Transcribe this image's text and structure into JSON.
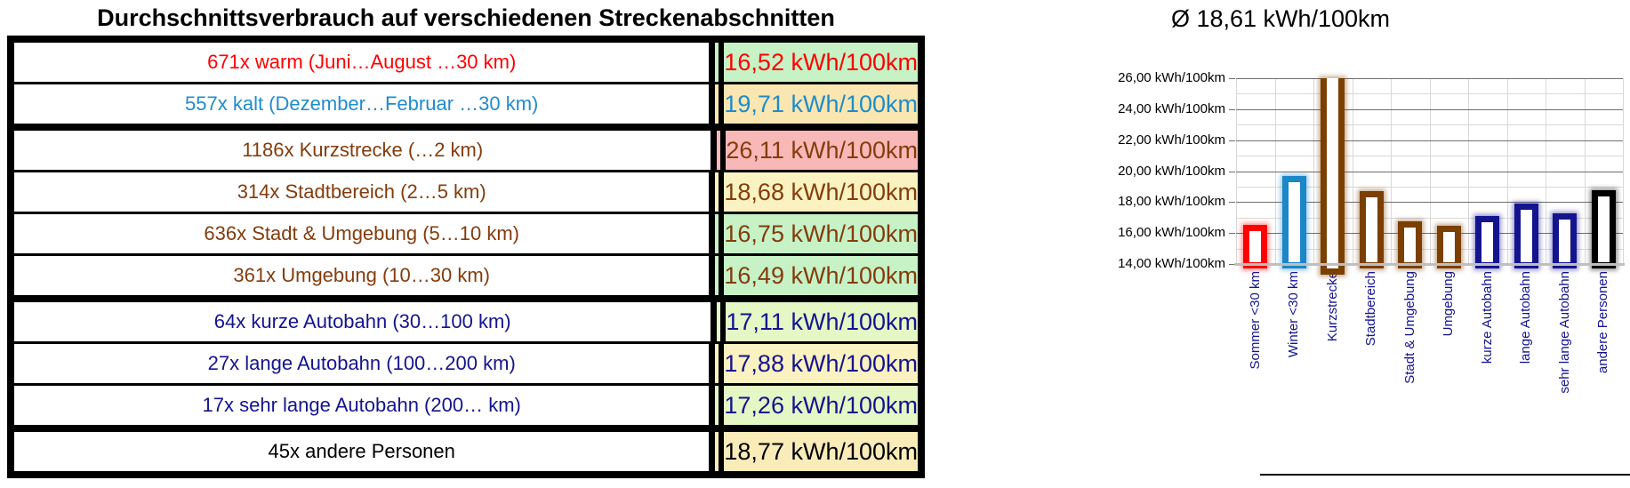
{
  "table": {
    "title": "Durchschnittsverbrauch auf verschiedenen Streckenabschnitten",
    "rows": [
      {
        "label": "671x warm (Juni…August …30 km)",
        "value": "16,52 kWh/100km",
        "color": "#FF0000",
        "bg": "#C6F2C6",
        "group_break": false
      },
      {
        "label": "557x kalt (Dezember…Februar …30 km)",
        "value": "19,71 kWh/100km",
        "color": "#1F8CCC",
        "bg": "#FAE6B0",
        "group_break": false
      },
      {
        "label": "1186x Kurzstrecke (…2 km)",
        "value": "26,11 kWh/100km",
        "color": "#843C0C",
        "bg": "#F8B8B8",
        "group_break": true
      },
      {
        "label": "314x Stadtbereich (2…5 km)",
        "value": "18,68 kWh/100km",
        "color": "#843C0C",
        "bg": "#FBF2C1",
        "group_break": false
      },
      {
        "label": "636x Stadt & Umgebung (5…10 km)",
        "value": "16,75 kWh/100km",
        "color": "#843C0C",
        "bg": "#C6F2C6",
        "group_break": false
      },
      {
        "label": "361x Umgebung (10…30 km)",
        "value": "16,49 kWh/100km",
        "color": "#843C0C",
        "bg": "#C6F2C6",
        "group_break": false
      },
      {
        "label": "64x kurze Autobahn (30…100 km)",
        "value": "17,11 kWh/100km",
        "color": "#14148F",
        "bg": "#E4F7C4",
        "group_break": true
      },
      {
        "label": "27x lange Autobahn (100…200 km)",
        "value": "17,88 kWh/100km",
        "color": "#14148F",
        "bg": "#FBF2C1",
        "group_break": false
      },
      {
        "label": "17x sehr lange Autobahn (200… km)",
        "value": "17,26 kWh/100km",
        "color": "#14148F",
        "bg": "#E4F7C4",
        "group_break": false
      },
      {
        "label": "45x andere Personen",
        "value": "18,77 kWh/100km",
        "color": "#000000",
        "bg": "#F9ECB9",
        "group_break": true
      }
    ]
  },
  "chart_data": {
    "type": "bar",
    "title": "Ø 18,61 kWh/100km",
    "categories": [
      "Sommer <30 km",
      "Winter <30 km",
      "Kurzstrecke",
      "Stadtbereich",
      "Stadt & Umgebung",
      "Umgebung",
      "kurze Autobahn",
      "lange Autobahn",
      "sehr lange Autobahn",
      "andere Personen"
    ],
    "values": [
      16.52,
      19.71,
      26.11,
      18.68,
      16.75,
      16.49,
      17.11,
      17.88,
      17.26,
      18.77
    ],
    "bar_colors": [
      "#FF0000",
      "#1B86C8",
      "#7B3F00",
      "#7B3F00",
      "#7B3F00",
      "#7B3F00",
      "#14148F",
      "#14148F",
      "#14148F",
      "#000000"
    ],
    "bar_fill": "#FFFFFF",
    "xlabel_color": "#14148F",
    "ylim": [
      14,
      26
    ],
    "ytick_step": 2,
    "minor_grid_step": 1,
    "ytick_decimal_separator": ",",
    "ytick_suffix": " kWh/100km",
    "grid": true,
    "legend": false,
    "bars_outlined": true
  }
}
